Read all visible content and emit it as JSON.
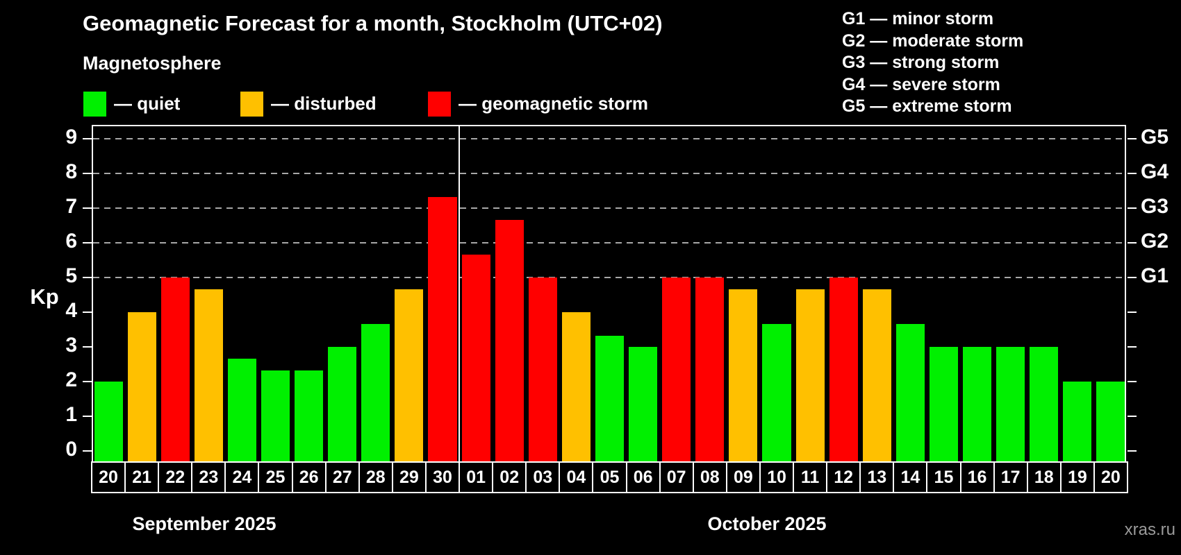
{
  "header": {
    "title": "Geomagnetic Forecast for a month, Stockholm (UTC+02)",
    "subtitle": "Magnetosphere"
  },
  "legend": {
    "items": [
      {
        "name": "quiet",
        "label": "— quiet",
        "color": "#00f000"
      },
      {
        "name": "disturbed",
        "label": "— disturbed",
        "color": "#ffc000"
      },
      {
        "name": "storm",
        "label": "— geomagnetic storm",
        "color": "#ff0000"
      }
    ]
  },
  "g_legend": {
    "lines": [
      "G1 — minor storm",
      "G2 — moderate storm",
      "G3 — strong storm",
      "G4 — severe storm",
      "G5 — extreme storm"
    ]
  },
  "axes": {
    "y_title": "Kp",
    "y_ticks": [
      0,
      1,
      2,
      3,
      4,
      5,
      6,
      7,
      8,
      9
    ],
    "g_levels": [
      {
        "kp": 5,
        "label": "G1"
      },
      {
        "kp": 6,
        "label": "G2"
      },
      {
        "kp": 7,
        "label": "G3"
      },
      {
        "kp": 8,
        "label": "G4"
      },
      {
        "kp": 9,
        "label": "G5"
      }
    ]
  },
  "months": [
    "September 2025",
    "October 2025"
  ],
  "footer": {
    "watermark": "xras.ru"
  },
  "chart_data": {
    "type": "bar",
    "title": "Geomagnetic Forecast for a month, Stockholm (UTC+02)",
    "xlabel": "",
    "ylabel": "Kp",
    "ylim": [
      0,
      9
    ],
    "grid": "dashed horizontal at Kp 5-9 (G1-G5)",
    "month_boundary_index": 11,
    "categories": [
      "20",
      "21",
      "22",
      "23",
      "24",
      "25",
      "26",
      "27",
      "28",
      "29",
      "30",
      "01",
      "02",
      "03",
      "04",
      "05",
      "06",
      "07",
      "08",
      "09",
      "10",
      "11",
      "12",
      "13",
      "14",
      "15",
      "16",
      "17",
      "18",
      "19",
      "20"
    ],
    "values": [
      2.0,
      4.0,
      5.0,
      4.67,
      2.67,
      2.33,
      2.33,
      3.0,
      3.67,
      4.67,
      7.33,
      5.67,
      6.67,
      5.0,
      4.0,
      3.33,
      3.0,
      5.0,
      5.0,
      4.67,
      3.67,
      4.67,
      5.0,
      4.67,
      3.67,
      3.0,
      3.0,
      3.0,
      3.0,
      2.0,
      2.0
    ],
    "statuses": [
      "quiet",
      "disturbed",
      "storm",
      "disturbed",
      "quiet",
      "quiet",
      "quiet",
      "quiet",
      "quiet",
      "disturbed",
      "storm",
      "storm",
      "storm",
      "storm",
      "disturbed",
      "quiet",
      "quiet",
      "storm",
      "storm",
      "disturbed",
      "quiet",
      "disturbed",
      "storm",
      "disturbed",
      "quiet",
      "quiet",
      "quiet",
      "quiet",
      "quiet",
      "quiet",
      "quiet"
    ]
  }
}
